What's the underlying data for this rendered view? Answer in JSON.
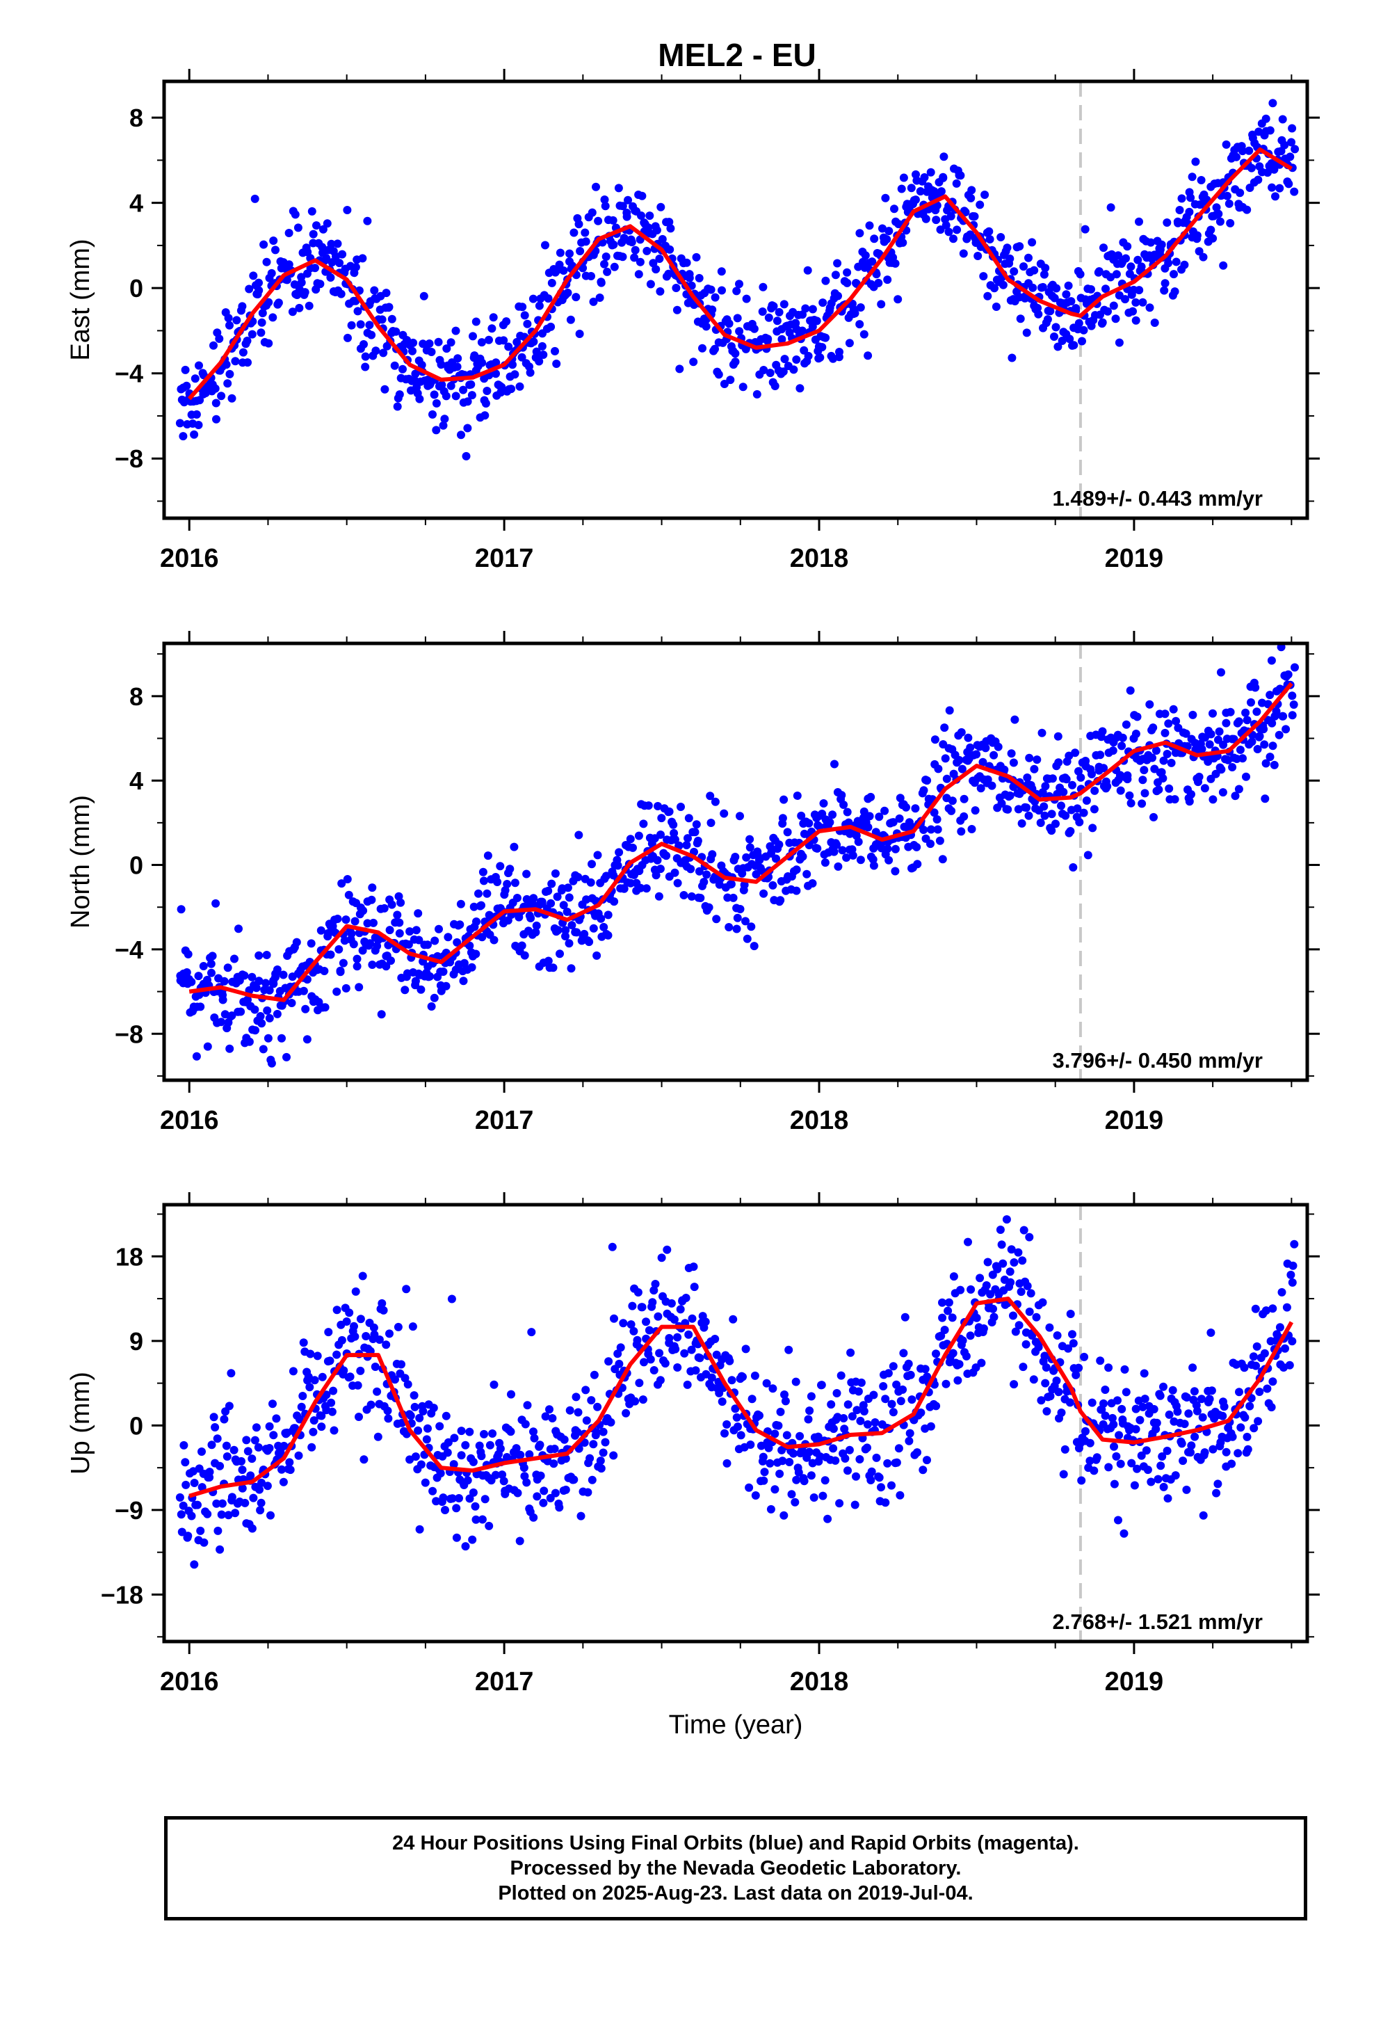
{
  "title": "MEL2 - EU",
  "xlabel": "Time (year)",
  "footer": {
    "line1": "24 Hour Positions Using Final Orbits (blue) and Rapid Orbits (magenta).",
    "line2": "Processed by the Nevada Geodetic Laboratory.",
    "line3": "Plotted on 2025-Aug-23. Last data on 2019-Jul-04."
  },
  "colors": {
    "points_final": "#0000ff",
    "points_rapid": "#ff00ff",
    "fit": "#ff0000",
    "event_line": "#c8c8c8"
  },
  "chart_data": [
    {
      "type": "scatter",
      "ylabel": "East (mm)",
      "xlim": [
        2015.92,
        2019.55
      ],
      "ylim": [
        -10.8,
        9.7
      ],
      "xticks": [
        2016,
        2017,
        2018,
        2019
      ],
      "yticks": [
        -8,
        -4,
        0,
        4,
        8
      ],
      "yticklabels": [
        "−8",
        "−4",
        "0",
        "4",
        "8"
      ],
      "rate_label": "1.489+/- 0.443 mm/yr",
      "event_lines": [
        2018.83
      ],
      "series": [
        {
          "color": "#ff0000",
          "kind": "line",
          "x": [
            2016.0,
            2016.1,
            2016.2,
            2016.3,
            2016.4,
            2016.5,
            2016.6,
            2016.7,
            2016.8,
            2016.9,
            2017.0,
            2017.1,
            2017.2,
            2017.3,
            2017.4,
            2017.5,
            2017.6,
            2017.7,
            2017.8,
            2017.9,
            2018.0,
            2018.1,
            2018.2,
            2018.3,
            2018.4,
            2018.5,
            2018.6,
            2018.7,
            2018.8,
            2018.83,
            2018.9,
            2019.0,
            2019.1,
            2019.2,
            2019.3,
            2019.4,
            2019.5
          ],
          "y": [
            -5.2,
            -3.5,
            -1.2,
            0.6,
            1.3,
            0.4,
            -1.8,
            -3.6,
            -4.3,
            -4.2,
            -3.6,
            -2.0,
            0.4,
            2.3,
            2.9,
            1.8,
            -0.4,
            -2.2,
            -2.8,
            -2.6,
            -2.0,
            -0.5,
            1.4,
            3.6,
            4.3,
            2.6,
            0.4,
            -0.6,
            -1.2,
            -1.3,
            -0.4,
            0.3,
            1.5,
            3.3,
            5.0,
            6.5,
            5.6
          ]
        },
        {
          "color": "#0000ff",
          "kind": "points",
          "n": 1150,
          "noise": 1.1
        }
      ]
    },
    {
      "type": "scatter",
      "ylabel": "North (mm)",
      "xlim": [
        2015.92,
        2019.55
      ],
      "ylim": [
        -10.2,
        10.5
      ],
      "xticks": [
        2016,
        2017,
        2018,
        2019
      ],
      "yticks": [
        -8,
        -4,
        0,
        4,
        8
      ],
      "yticklabels": [
        "−8",
        "−4",
        "0",
        "4",
        "8"
      ],
      "rate_label": "3.796+/- 0.450 mm/yr",
      "event_lines": [
        2018.83
      ],
      "series": [
        {
          "color": "#ff0000",
          "kind": "line",
          "x": [
            2016.0,
            2016.1,
            2016.2,
            2016.3,
            2016.4,
            2016.5,
            2016.6,
            2016.7,
            2016.8,
            2016.9,
            2017.0,
            2017.1,
            2017.2,
            2017.3,
            2017.4,
            2017.5,
            2017.6,
            2017.7,
            2017.8,
            2017.9,
            2018.0,
            2018.1,
            2018.2,
            2018.3,
            2018.4,
            2018.5,
            2018.6,
            2018.7,
            2018.8,
            2018.83,
            2018.9,
            2019.0,
            2019.1,
            2019.2,
            2019.3,
            2019.4,
            2019.5
          ],
          "y": [
            -6.0,
            -5.8,
            -6.2,
            -6.4,
            -4.6,
            -2.9,
            -3.2,
            -4.2,
            -4.6,
            -3.4,
            -2.2,
            -2.1,
            -2.6,
            -1.9,
            0.1,
            1.0,
            0.4,
            -0.6,
            -0.8,
            0.4,
            1.6,
            1.8,
            1.2,
            1.6,
            3.6,
            4.7,
            4.2,
            3.1,
            3.2,
            3.4,
            4.2,
            5.4,
            5.8,
            5.2,
            5.4,
            6.8,
            8.6
          ]
        },
        {
          "color": "#0000ff",
          "kind": "points",
          "n": 1150,
          "noise": 1.2
        }
      ]
    },
    {
      "type": "scatter",
      "ylabel": "Up (mm)",
      "xlim": [
        2015.92,
        2019.55
      ],
      "ylim": [
        -23,
        23.5
      ],
      "xticks": [
        2016,
        2017,
        2018,
        2019
      ],
      "yticks": [
        -18,
        -9,
        0,
        9,
        18
      ],
      "yticklabels": [
        "−18",
        "−9",
        "0",
        "9",
        "18"
      ],
      "rate_label": "2.768+/- 1.521 mm/yr",
      "event_lines": [
        2018.83
      ],
      "series": [
        {
          "color": "#ff0000",
          "kind": "line",
          "x": [
            2016.0,
            2016.1,
            2016.2,
            2016.3,
            2016.4,
            2016.5,
            2016.6,
            2016.7,
            2016.8,
            2016.9,
            2017.0,
            2017.1,
            2017.2,
            2017.3,
            2017.4,
            2017.5,
            2017.6,
            2017.7,
            2017.8,
            2017.9,
            2018.0,
            2018.1,
            2018.2,
            2018.3,
            2018.4,
            2018.5,
            2018.6,
            2018.7,
            2018.8,
            2018.83,
            2018.9,
            2019.0,
            2019.1,
            2019.2,
            2019.3,
            2019.4,
            2019.5
          ],
          "y": [
            -7.5,
            -6.5,
            -6.0,
            -3.5,
            2.5,
            7.5,
            7.5,
            -0.5,
            -4.5,
            -4.8,
            -4.0,
            -3.5,
            -3.0,
            0.5,
            6.5,
            10.5,
            10.5,
            4.5,
            -0.5,
            -2.3,
            -2.0,
            -1.0,
            -0.8,
            1.2,
            7.5,
            13.0,
            13.5,
            9.5,
            4.0,
            1.5,
            -1.5,
            -1.8,
            -1.2,
            -0.5,
            0.5,
            5.0,
            11.0
          ]
        },
        {
          "color": "#0000ff",
          "kind": "points",
          "n": 1100,
          "noise": 3.6
        }
      ]
    }
  ]
}
